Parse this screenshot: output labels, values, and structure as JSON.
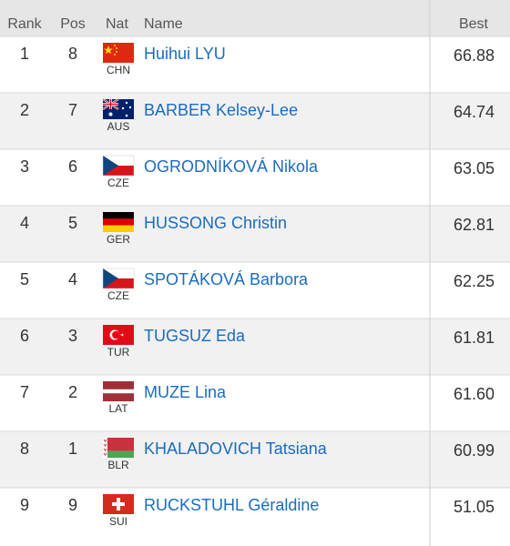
{
  "table": {
    "columns": [
      "Rank",
      "Pos",
      "Nat",
      "Name",
      "Best"
    ],
    "rows": [
      [
        "1",
        "8",
        "CHN",
        "Huihui LYU",
        "66.88"
      ],
      [
        "2",
        "7",
        "AUS",
        "BARBER Kelsey-Lee",
        "64.74"
      ],
      [
        "3",
        "6",
        "CZE",
        "OGRODNÍKOVÁ Nikola",
        "63.05"
      ],
      [
        "4",
        "5",
        "GER",
        "HUSSONG Christin",
        "62.81"
      ],
      [
        "5",
        "4",
        "CZE",
        "SPOTÁKOVÁ Barbora",
        "62.25"
      ],
      [
        "6",
        "3",
        "TUR",
        "TUGSUZ Eda",
        "61.81"
      ],
      [
        "7",
        "2",
        "LAT",
        "MUZE Lina",
        "61.60"
      ],
      [
        "8",
        "1",
        "BLR",
        "KHALADOVICH Tatsiana",
        "60.99"
      ],
      [
        "9",
        "9",
        "SUI",
        "RUCKSTUHL Géraldine",
        "51.05"
      ]
    ]
  }
}
